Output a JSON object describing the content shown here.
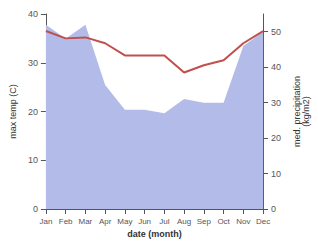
{
  "chart_data": {
    "type": "line",
    "categories": [
      "Jan",
      "Feb",
      "Mar",
      "Apr",
      "May",
      "Jun",
      "Jul",
      "Aug",
      "Sep",
      "Oct",
      "Nov",
      "Dec"
    ],
    "series": [
      {
        "type": "area",
        "color": "#b3bce8",
        "axis": "y2",
        "values": [
          52,
          48,
          52,
          35,
          28,
          28,
          27,
          31,
          30,
          30,
          46,
          50
        ]
      },
      {
        "type": "line",
        "color": "#c0504d",
        "values": [
          36.5,
          35.0,
          35.2,
          34.0,
          31.5,
          31.5,
          31.5,
          28.0,
          29.5,
          30.5,
          34.0,
          36.5
        ]
      }
    ],
    "xlabel": "date (month)",
    "ylabel": "max temp (C)",
    "y2label": "med. precipitation\n(kg/m2)",
    "ylim": [
      0,
      40
    ],
    "yticks": [
      0,
      10,
      20,
      30,
      40
    ],
    "y2lim": [
      0,
      55
    ],
    "y2ticks": [
      0,
      10,
      20,
      30,
      40,
      50
    ],
    "grid": false
  }
}
